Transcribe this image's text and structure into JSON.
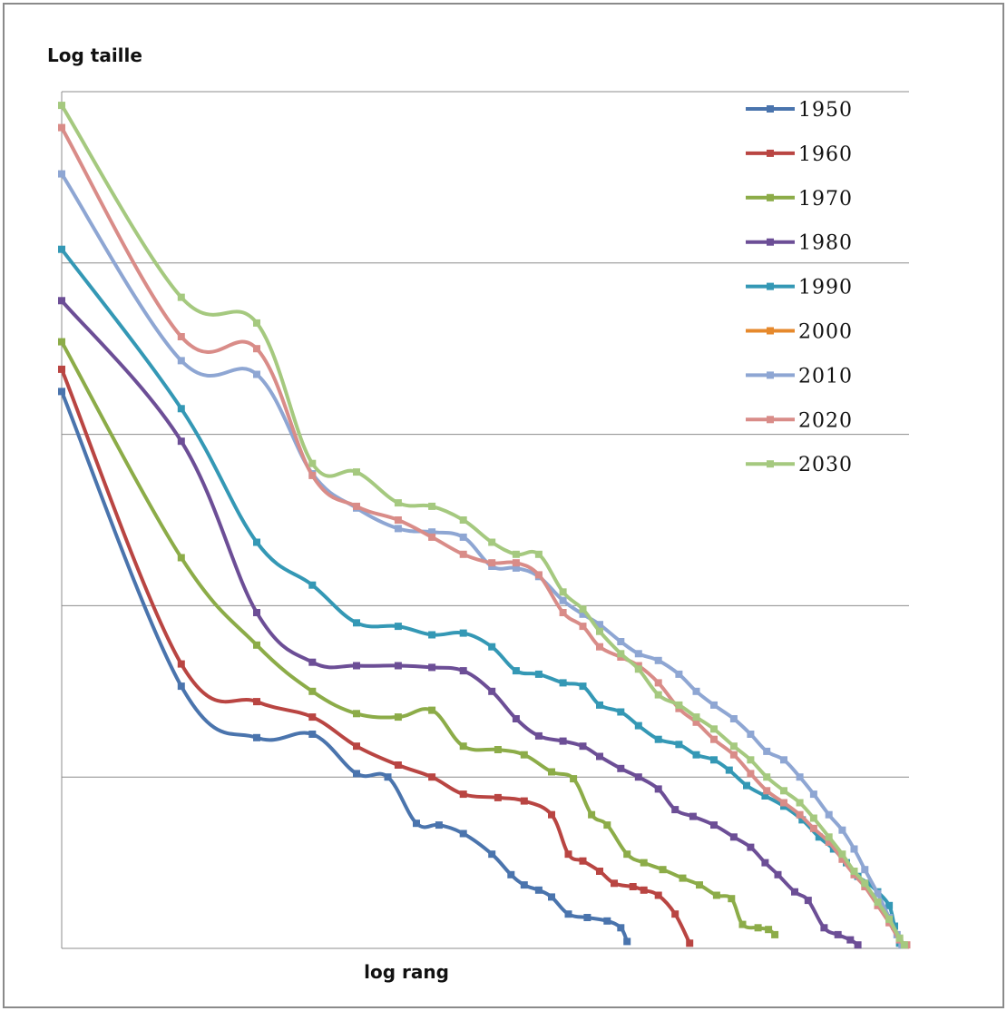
{
  "chart_data": {
    "type": "line",
    "ylabel": "Log  taille",
    "xlabel": "log rang",
    "x_scale": "log",
    "xlim": [
      1,
      2400
    ],
    "ylim": [
      0,
      5
    ],
    "yticks": [
      1,
      2,
      3,
      4,
      5
    ],
    "y_gridlines": true,
    "legend_position": "right",
    "series": [
      {
        "name": "1950",
        "color": "#4a74ad",
        "points": [
          [
            1,
            3.25
          ],
          [
            3,
            1.53
          ],
          [
            6,
            1.23
          ],
          [
            10,
            1.25
          ],
          [
            15,
            1.02
          ],
          [
            20,
            1.0
          ],
          [
            26,
            0.73
          ],
          [
            32,
            0.72
          ],
          [
            40,
            0.67
          ],
          [
            52,
            0.55
          ],
          [
            62,
            0.43
          ],
          [
            70,
            0.37
          ],
          [
            80,
            0.34
          ],
          [
            90,
            0.3
          ],
          [
            105,
            0.2
          ],
          [
            125,
            0.18
          ],
          [
            150,
            0.16
          ],
          [
            170,
            0.12
          ],
          [
            180,
            0.04
          ]
        ]
      },
      {
        "name": "1960",
        "color": "#b94542",
        "points": [
          [
            1,
            3.38
          ],
          [
            3,
            1.66
          ],
          [
            6,
            1.44
          ],
          [
            10,
            1.35
          ],
          [
            15,
            1.18
          ],
          [
            22,
            1.07
          ],
          [
            30,
            1.0
          ],
          [
            40,
            0.9
          ],
          [
            55,
            0.88
          ],
          [
            70,
            0.86
          ],
          [
            90,
            0.78
          ],
          [
            105,
            0.55
          ],
          [
            120,
            0.51
          ],
          [
            140,
            0.45
          ],
          [
            160,
            0.38
          ],
          [
            190,
            0.36
          ],
          [
            210,
            0.34
          ],
          [
            240,
            0.31
          ],
          [
            280,
            0.2
          ],
          [
            320,
            0.03
          ]
        ]
      },
      {
        "name": "1970",
        "color": "#8cac48",
        "points": [
          [
            1,
            3.54
          ],
          [
            3,
            2.28
          ],
          [
            6,
            1.77
          ],
          [
            10,
            1.5
          ],
          [
            15,
            1.37
          ],
          [
            22,
            1.35
          ],
          [
            30,
            1.39
          ],
          [
            40,
            1.18
          ],
          [
            55,
            1.16
          ],
          [
            70,
            1.13
          ],
          [
            90,
            1.03
          ],
          [
            110,
            0.99
          ],
          [
            130,
            0.78
          ],
          [
            150,
            0.72
          ],
          [
            180,
            0.55
          ],
          [
            210,
            0.5
          ],
          [
            250,
            0.46
          ],
          [
            300,
            0.41
          ],
          [
            350,
            0.37
          ],
          [
            410,
            0.31
          ],
          [
            470,
            0.29
          ],
          [
            520,
            0.14
          ],
          [
            600,
            0.12
          ],
          [
            660,
            0.11
          ],
          [
            700,
            0.08
          ]
        ]
      },
      {
        "name": "1980",
        "color": "#6c4e96",
        "points": [
          [
            1,
            3.78
          ],
          [
            3,
            2.96
          ],
          [
            6,
            1.96
          ],
          [
            10,
            1.67
          ],
          [
            15,
            1.65
          ],
          [
            22,
            1.65
          ],
          [
            30,
            1.64
          ],
          [
            40,
            1.62
          ],
          [
            52,
            1.5
          ],
          [
            65,
            1.34
          ],
          [
            80,
            1.24
          ],
          [
            100,
            1.21
          ],
          [
            120,
            1.18
          ],
          [
            140,
            1.12
          ],
          [
            170,
            1.05
          ],
          [
            200,
            1.0
          ],
          [
            240,
            0.93
          ],
          [
            280,
            0.81
          ],
          [
            330,
            0.77
          ],
          [
            400,
            0.72
          ],
          [
            480,
            0.65
          ],
          [
            560,
            0.59
          ],
          [
            640,
            0.5
          ],
          [
            720,
            0.43
          ],
          [
            840,
            0.33
          ],
          [
            950,
            0.28
          ],
          [
            1100,
            0.12
          ],
          [
            1250,
            0.08
          ],
          [
            1400,
            0.05
          ],
          [
            1500,
            0.02
          ]
        ]
      },
      {
        "name": "1990",
        "color": "#3498b5",
        "points": [
          [
            1,
            4.08
          ],
          [
            3,
            3.15
          ],
          [
            6,
            2.37
          ],
          [
            10,
            2.12
          ],
          [
            15,
            1.9
          ],
          [
            22,
            1.88
          ],
          [
            30,
            1.83
          ],
          [
            40,
            1.84
          ],
          [
            52,
            1.76
          ],
          [
            65,
            1.62
          ],
          [
            80,
            1.6
          ],
          [
            100,
            1.55
          ],
          [
            120,
            1.53
          ],
          [
            140,
            1.42
          ],
          [
            170,
            1.38
          ],
          [
            200,
            1.3
          ],
          [
            240,
            1.22
          ],
          [
            290,
            1.19
          ],
          [
            340,
            1.13
          ],
          [
            400,
            1.1
          ],
          [
            460,
            1.04
          ],
          [
            540,
            0.95
          ],
          [
            640,
            0.89
          ],
          [
            760,
            0.83
          ],
          [
            900,
            0.75
          ],
          [
            1050,
            0.65
          ],
          [
            1200,
            0.58
          ],
          [
            1350,
            0.5
          ],
          [
            1500,
            0.42
          ],
          [
            1650,
            0.38
          ],
          [
            1800,
            0.33
          ],
          [
            2000,
            0.25
          ],
          [
            2100,
            0.13
          ],
          [
            2200,
            0.03
          ]
        ]
      },
      {
        "name": "2000",
        "color": "#e6892c",
        "points": []
      },
      {
        "name": "2010",
        "color": "#8ea6d3",
        "points": [
          [
            1,
            4.52
          ],
          [
            3,
            3.43
          ],
          [
            6,
            3.35
          ],
          [
            10,
            2.77
          ],
          [
            15,
            2.57
          ],
          [
            22,
            2.45
          ],
          [
            30,
            2.43
          ],
          [
            40,
            2.4
          ],
          [
            52,
            2.23
          ],
          [
            65,
            2.22
          ],
          [
            80,
            2.17
          ],
          [
            100,
            2.03
          ],
          [
            120,
            1.95
          ],
          [
            140,
            1.89
          ],
          [
            170,
            1.79
          ],
          [
            200,
            1.72
          ],
          [
            240,
            1.68
          ],
          [
            290,
            1.6
          ],
          [
            340,
            1.5
          ],
          [
            400,
            1.42
          ],
          [
            480,
            1.34
          ],
          [
            560,
            1.25
          ],
          [
            650,
            1.15
          ],
          [
            760,
            1.1
          ],
          [
            880,
            1.0
          ],
          [
            1000,
            0.9
          ],
          [
            1150,
            0.78
          ],
          [
            1300,
            0.69
          ],
          [
            1450,
            0.58
          ],
          [
            1600,
            0.46
          ],
          [
            1800,
            0.32
          ],
          [
            2000,
            0.18
          ],
          [
            2150,
            0.08
          ],
          [
            2250,
            0.02
          ]
        ]
      },
      {
        "name": "2020",
        "color": "#d98c88",
        "points": [
          [
            1,
            4.79
          ],
          [
            3,
            3.57
          ],
          [
            6,
            3.5
          ],
          [
            10,
            2.76
          ],
          [
            15,
            2.58
          ],
          [
            22,
            2.5
          ],
          [
            30,
            2.4
          ],
          [
            40,
            2.3
          ],
          [
            52,
            2.25
          ],
          [
            65,
            2.25
          ],
          [
            80,
            2.18
          ],
          [
            100,
            1.96
          ],
          [
            120,
            1.88
          ],
          [
            140,
            1.76
          ],
          [
            170,
            1.7
          ],
          [
            200,
            1.65
          ],
          [
            240,
            1.55
          ],
          [
            290,
            1.4
          ],
          [
            340,
            1.32
          ],
          [
            400,
            1.22
          ],
          [
            480,
            1.13
          ],
          [
            560,
            1.02
          ],
          [
            650,
            0.92
          ],
          [
            760,
            0.85
          ],
          [
            880,
            0.78
          ],
          [
            1000,
            0.7
          ],
          [
            1150,
            0.62
          ],
          [
            1300,
            0.52
          ],
          [
            1450,
            0.43
          ],
          [
            1600,
            0.36
          ],
          [
            1800,
            0.25
          ],
          [
            2000,
            0.15
          ],
          [
            2200,
            0.05
          ],
          [
            2350,
            0.02
          ]
        ]
      },
      {
        "name": "2030",
        "color": "#a5c97f",
        "points": [
          [
            1,
            4.92
          ],
          [
            3,
            3.8
          ],
          [
            6,
            3.65
          ],
          [
            10,
            2.83
          ],
          [
            15,
            2.78
          ],
          [
            22,
            2.6
          ],
          [
            30,
            2.58
          ],
          [
            40,
            2.5
          ],
          [
            52,
            2.37
          ],
          [
            65,
            2.3
          ],
          [
            80,
            2.3
          ],
          [
            100,
            2.08
          ],
          [
            120,
            1.98
          ],
          [
            140,
            1.85
          ],
          [
            170,
            1.72
          ],
          [
            200,
            1.63
          ],
          [
            240,
            1.48
          ],
          [
            290,
            1.42
          ],
          [
            340,
            1.35
          ],
          [
            400,
            1.28
          ],
          [
            480,
            1.18
          ],
          [
            560,
            1.1
          ],
          [
            650,
            1.0
          ],
          [
            760,
            0.92
          ],
          [
            880,
            0.85
          ],
          [
            1000,
            0.76
          ],
          [
            1150,
            0.65
          ],
          [
            1300,
            0.55
          ],
          [
            1450,
            0.45
          ],
          [
            1600,
            0.38
          ],
          [
            1800,
            0.27
          ],
          [
            2000,
            0.17
          ],
          [
            2200,
            0.06
          ],
          [
            2300,
            0.02
          ]
        ]
      }
    ]
  }
}
